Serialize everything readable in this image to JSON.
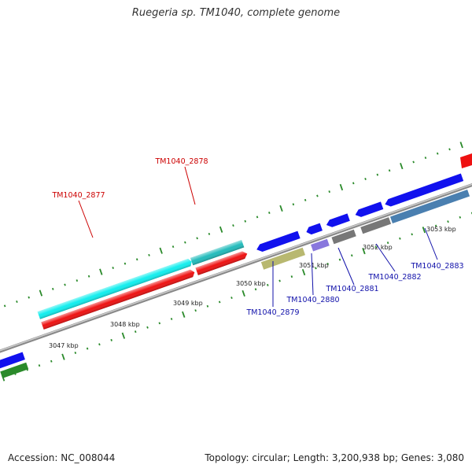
{
  "title": "Ruegeria sp. TM1040, complete genome",
  "footer": {
    "accession": "Accession: NC_008044",
    "summary": "Topology: circular; Length: 3,200,938 bp; Genes: 3,080"
  },
  "colors": {
    "red": "#ee1111",
    "cyan": "#11eeee",
    "blue": "#1111ee",
    "teal": "#22bbbb",
    "green": "#2a8a2a",
    "olive": "#b8b870",
    "lavender": "#8877dd",
    "grey": "#777777",
    "steel": "#4a7fb0",
    "axis": "#888888",
    "tick": "#2a8a2a",
    "label_red": "#cc0000",
    "label_blue": "#1111aa"
  },
  "scale_labels": [
    "3047 kbp",
    "3048 kbp",
    "3049 kbp",
    "3050 kbp",
    "3051 kbp",
    "3052 kbp",
    "3053 kbp"
  ],
  "genes": {
    "g2877": "TM1040_2877",
    "g2878": "TM1040_2878",
    "g2879": "TM1040_2879",
    "g2880": "TM1040_2880",
    "g2881": "TM1040_2881",
    "g2882": "TM1040_2882",
    "g2883": "TM1040_2883"
  }
}
